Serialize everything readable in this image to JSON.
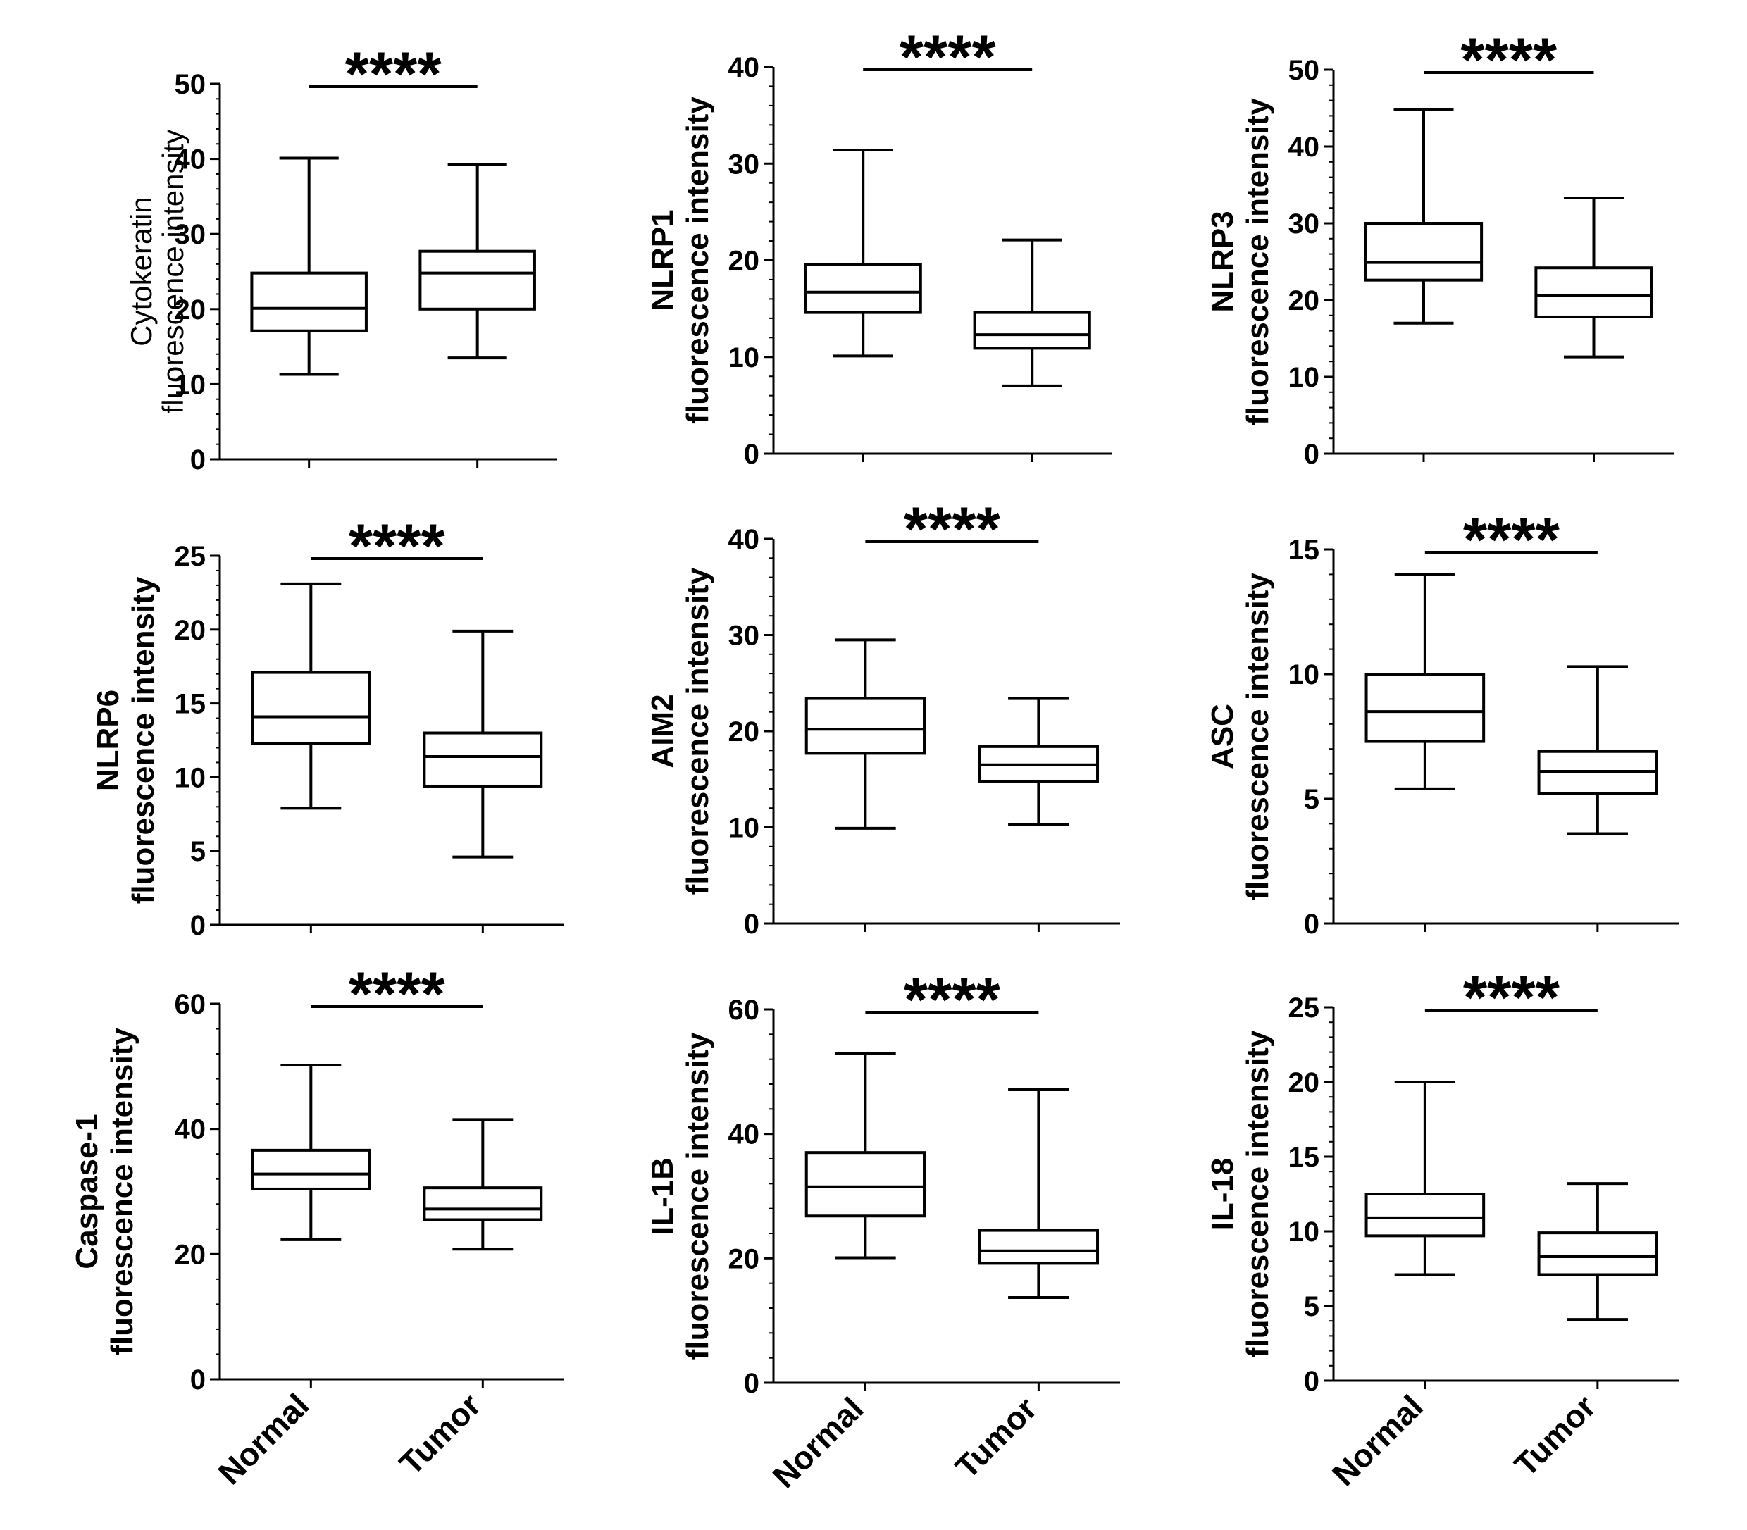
{
  "categories": [
    "Normal",
    "Tumor"
  ],
  "chart_data": [
    {
      "type": "box",
      "title": "",
      "ylabel": [
        "Cytokeratin",
        "fluorescence intensity"
      ],
      "ylim": [
        0,
        50
      ],
      "yticks": [
        0,
        10,
        20,
        30,
        40,
        50
      ],
      "significance": "****",
      "show_xlabels": false,
      "series": [
        {
          "name": "Normal",
          "min": 11.3,
          "q1": 17.1,
          "median": 20.1,
          "q3": 24.8,
          "max": 40.1
        },
        {
          "name": "Tumor",
          "min": 13.5,
          "q1": 20.0,
          "median": 24.8,
          "q3": 27.7,
          "max": 39.3
        }
      ]
    },
    {
      "type": "box",
      "title": "",
      "ylabel": [
        "NLRP1",
        "fluorescence intensity"
      ],
      "ylim": [
        0,
        40
      ],
      "yticks": [
        0,
        10,
        20,
        30,
        40
      ],
      "significance": "****",
      "show_xlabels": false,
      "series": [
        {
          "name": "Normal",
          "min": 10.1,
          "q1": 14.6,
          "median": 16.7,
          "q3": 19.6,
          "max": 31.4
        },
        {
          "name": "Tumor",
          "min": 7.0,
          "q1": 10.9,
          "median": 12.3,
          "q3": 14.6,
          "max": 22.1
        }
      ]
    },
    {
      "type": "box",
      "title": "",
      "ylabel": [
        "NLRP3",
        "fluorescence intensity"
      ],
      "ylim": [
        0,
        50
      ],
      "yticks": [
        0,
        10,
        20,
        30,
        40,
        50
      ],
      "significance": "****",
      "show_xlabels": false,
      "series": [
        {
          "name": "Normal",
          "min": 17.0,
          "q1": 22.6,
          "median": 24.9,
          "q3": 30.0,
          "max": 44.8
        },
        {
          "name": "Tumor",
          "min": 12.6,
          "q1": 17.8,
          "median": 20.6,
          "q3": 24.2,
          "max": 33.3
        }
      ]
    },
    {
      "type": "box",
      "title": "",
      "ylabel": [
        "NLRP6",
        "fluorescence intensity"
      ],
      "ylim": [
        0,
        25
      ],
      "yticks": [
        0,
        5,
        10,
        15,
        20,
        25
      ],
      "significance": "****",
      "show_xlabels": false,
      "series": [
        {
          "name": "Normal",
          "min": 7.9,
          "q1": 12.3,
          "median": 14.1,
          "q3": 17.1,
          "max": 23.1
        },
        {
          "name": "Tumor",
          "min": 4.6,
          "q1": 9.4,
          "median": 11.4,
          "q3": 13.0,
          "max": 19.9
        }
      ]
    },
    {
      "type": "box",
      "title": "",
      "ylabel": [
        "AIM2",
        "fluorescence intensity"
      ],
      "ylim": [
        0,
        40
      ],
      "yticks": [
        0,
        10,
        20,
        30,
        40
      ],
      "significance": "****",
      "show_xlabels": false,
      "series": [
        {
          "name": "Normal",
          "min": 9.9,
          "q1": 17.7,
          "median": 20.2,
          "q3": 23.4,
          "max": 29.5
        },
        {
          "name": "Tumor",
          "min": 10.3,
          "q1": 14.8,
          "median": 16.5,
          "q3": 18.4,
          "max": 23.4
        }
      ]
    },
    {
      "type": "box",
      "title": "",
      "ylabel": [
        "ASC",
        "fluorescence intensity"
      ],
      "ylim": [
        0,
        15
      ],
      "yticks": [
        0,
        5,
        10,
        15
      ],
      "significance": "****",
      "show_xlabels": false,
      "series": [
        {
          "name": "Normal",
          "min": 5.4,
          "q1": 7.3,
          "median": 8.5,
          "q3": 10.0,
          "max": 14.0
        },
        {
          "name": "Tumor",
          "min": 3.6,
          "q1": 5.2,
          "median": 6.1,
          "q3": 6.9,
          "max": 10.3
        }
      ]
    },
    {
      "type": "box",
      "title": "",
      "ylabel": [
        "Caspase-1",
        "fluorescence intensity"
      ],
      "ylim": [
        0,
        60
      ],
      "yticks": [
        0,
        20,
        40,
        60
      ],
      "significance": "****",
      "show_xlabels": true,
      "series": [
        {
          "name": "Normal",
          "min": 22.3,
          "q1": 30.4,
          "median": 32.8,
          "q3": 36.6,
          "max": 50.2
        },
        {
          "name": "Tumor",
          "min": 20.8,
          "q1": 25.5,
          "median": 27.2,
          "q3": 30.6,
          "max": 41.5
        }
      ]
    },
    {
      "type": "box",
      "title": "",
      "ylabel": [
        "IL-1B",
        "fluorescence intensity"
      ],
      "ylim": [
        0,
        60
      ],
      "yticks": [
        0,
        20,
        40,
        60
      ],
      "significance": "****",
      "show_xlabels": true,
      "series": [
        {
          "name": "Normal",
          "min": 20.1,
          "q1": 26.8,
          "median": 31.5,
          "q3": 37.0,
          "max": 52.9
        },
        {
          "name": "Tumor",
          "min": 13.7,
          "q1": 19.2,
          "median": 21.2,
          "q3": 24.5,
          "max": 47.1
        }
      ]
    },
    {
      "type": "box",
      "title": "",
      "ylabel": [
        "IL-18",
        "fluorescence intensity"
      ],
      "ylim": [
        0,
        25
      ],
      "yticks": [
        0,
        5,
        10,
        15,
        20,
        25
      ],
      "significance": "****",
      "show_xlabels": true,
      "series": [
        {
          "name": "Normal",
          "min": 7.1,
          "q1": 9.7,
          "median": 10.9,
          "q3": 12.5,
          "max": 20.0
        },
        {
          "name": "Tumor",
          "min": 4.1,
          "q1": 7.1,
          "median": 8.3,
          "q3": 9.9,
          "max": 13.2
        }
      ]
    }
  ]
}
